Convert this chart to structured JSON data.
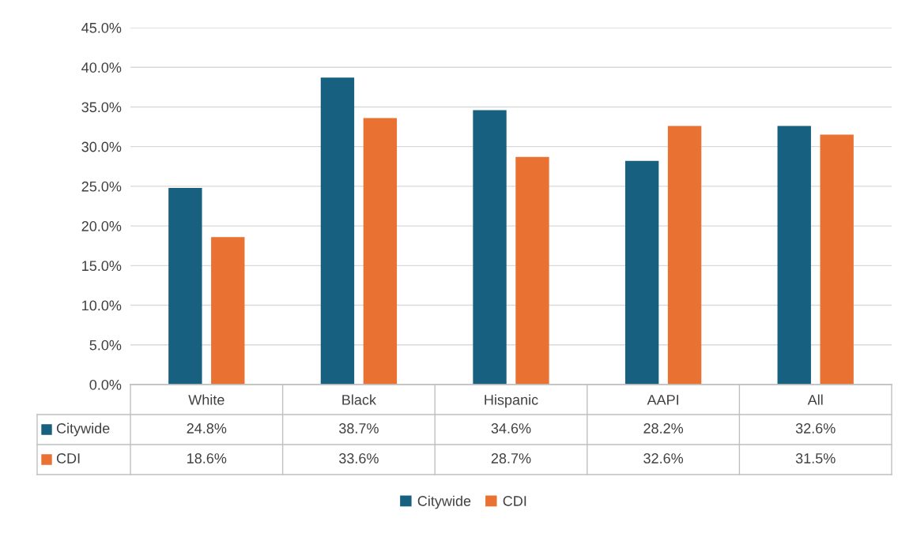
{
  "chart_data": {
    "type": "bar",
    "categories": [
      "White",
      "Black",
      "Hispanic",
      "AAPI",
      "All"
    ],
    "series": [
      {
        "name": "Citywide",
        "color": "#17607f",
        "values": [
          24.8,
          38.7,
          34.6,
          28.2,
          32.6
        ],
        "value_labels": [
          "24.8%",
          "38.7%",
          "34.6%",
          "28.2%",
          "32.6%"
        ]
      },
      {
        "name": "CDI",
        "color": "#e97132",
        "values": [
          18.6,
          33.6,
          28.7,
          32.6,
          31.5
        ],
        "value_labels": [
          "18.6%",
          "33.6%",
          "28.7%",
          "32.6%",
          "31.5%"
        ]
      }
    ],
    "ylim": [
      0,
      45
    ],
    "yticks": [
      {
        "value": 0,
        "label": "0.0%"
      },
      {
        "value": 5,
        "label": "5.0%"
      },
      {
        "value": 10,
        "label": "10.0%"
      },
      {
        "value": 15,
        "label": "15.0%"
      },
      {
        "value": 20,
        "label": "20.0%"
      },
      {
        "value": 25,
        "label": "25.0%"
      },
      {
        "value": 30,
        "label": "30.0%"
      },
      {
        "value": 35,
        "label": "35.0%"
      },
      {
        "value": 40,
        "label": "40.0%"
      },
      {
        "value": 45,
        "label": "45.0%"
      }
    ],
    "grid": "y",
    "legend": "bottom"
  }
}
